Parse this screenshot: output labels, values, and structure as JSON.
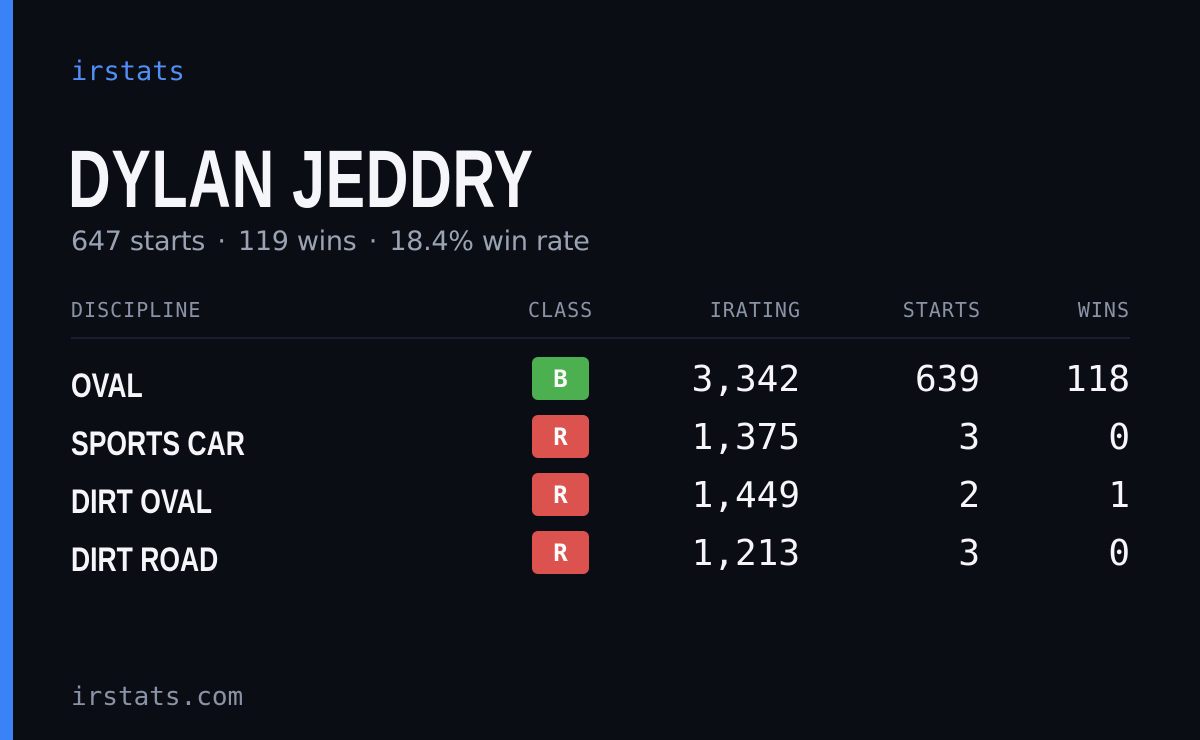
{
  "brand": "irstats",
  "player": {
    "name": "DYLAN JEDDRY",
    "summary": {
      "starts": "647 starts",
      "wins": "119 wins",
      "win_rate": "18.4% win rate",
      "separator": "·"
    }
  },
  "table": {
    "headers": {
      "discipline": "DISCIPLINE",
      "class": "CLASS",
      "irating": "IRATING",
      "starts": "STARTS",
      "wins": "WINS"
    },
    "rows": [
      {
        "discipline": "OVAL",
        "class": "B",
        "class_color": "#4caf50",
        "irating": "3,342",
        "starts": "639",
        "wins": "118"
      },
      {
        "discipline": "SPORTS CAR",
        "class": "R",
        "class_color": "#dc524f",
        "irating": "1,375",
        "starts": "3",
        "wins": "0"
      },
      {
        "discipline": "DIRT OVAL",
        "class": "R",
        "class_color": "#dc524f",
        "irating": "1,449",
        "starts": "2",
        "wins": "1"
      },
      {
        "discipline": "DIRT ROAD",
        "class": "R",
        "class_color": "#dc524f",
        "irating": "1,213",
        "starts": "3",
        "wins": "0"
      }
    ]
  },
  "footer": "irstats.com",
  "colors": {
    "accent": "#3b82f6",
    "background": "#0a0d14"
  }
}
